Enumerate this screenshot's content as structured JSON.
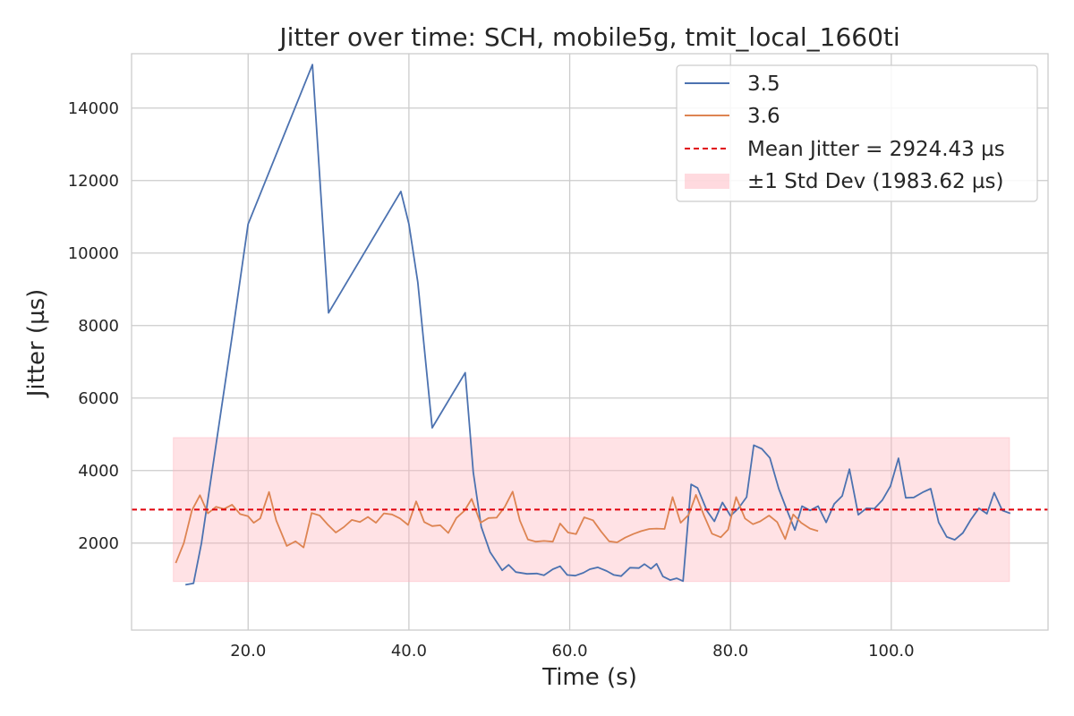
{
  "chart_data": {
    "type": "line",
    "title": "Jitter over time: SCH, mobile5g, tmit_local_1660ti",
    "xlabel": "Time (s)",
    "ylabel": "Jitter (µs)",
    "xlim": [
      5.5,
      119.5
    ],
    "ylim": [
      -400,
      15500
    ],
    "xticks": [
      20,
      40,
      60,
      80,
      100
    ],
    "xtick_labels": [
      "20.0",
      "40.0",
      "60.0",
      "80.0",
      "100.0"
    ],
    "yticks": [
      2000,
      4000,
      6000,
      8000,
      10000,
      12000,
      14000
    ],
    "ytick_labels": [
      "2000",
      "4000",
      "6000",
      "8000",
      "10000",
      "12000",
      "14000"
    ],
    "grid": true,
    "legend_position": "top-right",
    "colors": {
      "series_3_5": "#4c72b0",
      "series_3_6": "#dd8452",
      "mean_line": "#e0000a",
      "std_band": "#ffb6bf"
    },
    "series": [
      {
        "name": "3.5",
        "color": "#4c72b0",
        "x": [
          12.2,
          13.2,
          14.2,
          16.0,
          18.0,
          20.0,
          28.0,
          30.0,
          39.0,
          40.0,
          41.1,
          42.9,
          47.0,
          48.0,
          49.0,
          50.1,
          51.6,
          52.4,
          53.3,
          54.7,
          55.9,
          56.8,
          57.9,
          58.8,
          59.7,
          60.7,
          61.7,
          62.5,
          63.5,
          64.6,
          65.5,
          66.4,
          67.5,
          68.6,
          69.3,
          70.1,
          70.8,
          71.6,
          72.5,
          73.3,
          74.1,
          75.1,
          75.9,
          77.1,
          78.0,
          79.0,
          80.0,
          81.0,
          82.0,
          82.9,
          83.9,
          84.9,
          86.0,
          87.0,
          88.0,
          88.9,
          89.9,
          90.9,
          91.9,
          92.9,
          93.9,
          94.8,
          95.9,
          96.9,
          97.9,
          98.9,
          99.9,
          100.9,
          101.8,
          102.8,
          103.9,
          104.9,
          105.9,
          106.9,
          107.9,
          108.9,
          109.9,
          110.9,
          111.9,
          112.8,
          113.8,
          114.8
        ],
        "values": [
          850,
          890,
          2000,
          4700,
          7700,
          10800,
          15200,
          8350,
          11700,
          10800,
          9200,
          5180,
          6700,
          3950,
          2450,
          1750,
          1250,
          1400,
          1200,
          1150,
          1160,
          1110,
          1280,
          1360,
          1120,
          1100,
          1180,
          1280,
          1330,
          1230,
          1120,
          1090,
          1320,
          1310,
          1420,
          1290,
          1430,
          1080,
          980,
          1030,
          950,
          3620,
          3520,
          2880,
          2600,
          3120,
          2750,
          2960,
          3270,
          4700,
          4600,
          4350,
          3500,
          2920,
          2360,
          3020,
          2900,
          3020,
          2570,
          3080,
          3300,
          4040,
          2780,
          2960,
          2950,
          3190,
          3570,
          4340,
          3250,
          3260,
          3400,
          3500,
          2570,
          2170,
          2090,
          2280,
          2650,
          2960,
          2810,
          3390,
          2900,
          2820
        ]
      },
      {
        "name": "3.6",
        "color": "#dd8452",
        "x": [
          11.0,
          12.0,
          13.0,
          14.0,
          15.0,
          16.0,
          17.0,
          18.0,
          19.0,
          20.0,
          20.7,
          21.5,
          22.6,
          23.5,
          24.8,
          25.9,
          26.9,
          27.9,
          28.9,
          29.9,
          30.9,
          31.9,
          32.9,
          33.9,
          34.9,
          35.9,
          36.9,
          37.9,
          38.9,
          39.9,
          40.9,
          41.9,
          42.9,
          43.9,
          44.9,
          45.9,
          46.9,
          47.8,
          48.9,
          49.9,
          50.9,
          51.9,
          52.9,
          53.8,
          54.8,
          55.8,
          56.8,
          57.9,
          58.8,
          59.8,
          60.8,
          61.8,
          62.9,
          63.9,
          64.9,
          65.9,
          66.9,
          67.9,
          68.9,
          69.9,
          70.8,
          71.8,
          72.8,
          73.8,
          74.8,
          75.7,
          76.7,
          77.7,
          78.8,
          79.7,
          80.7,
          81.8,
          82.8,
          83.7,
          84.8,
          85.8,
          86.8,
          87.8,
          88.8,
          89.9,
          90.9
        ],
        "values": [
          1450,
          2000,
          2900,
          3320,
          2820,
          3000,
          2940,
          3060,
          2800,
          2740,
          2560,
          2680,
          3410,
          2620,
          1920,
          2050,
          1880,
          2830,
          2760,
          2510,
          2290,
          2440,
          2640,
          2580,
          2720,
          2560,
          2820,
          2790,
          2680,
          2500,
          3150,
          2580,
          2470,
          2490,
          2280,
          2690,
          2890,
          3220,
          2560,
          2690,
          2700,
          2990,
          3420,
          2620,
          2100,
          2040,
          2060,
          2040,
          2540,
          2290,
          2250,
          2710,
          2630,
          2320,
          2050,
          2020,
          2150,
          2250,
          2330,
          2390,
          2400,
          2390,
          3270,
          2560,
          2780,
          3330,
          2760,
          2260,
          2160,
          2370,
          3270,
          2680,
          2520,
          2600,
          2760,
          2580,
          2110,
          2790,
          2560,
          2400,
          2330
        ]
      }
    ],
    "mean_line": {
      "label": "Mean Jitter = 2924.43 µs",
      "value": 2924.43
    },
    "std_band": {
      "label": "±1 Std Dev (1983.62 µs)",
      "low": 940.81,
      "high": 4908.05,
      "x_start": 10.7,
      "x_end": 114.7
    }
  }
}
